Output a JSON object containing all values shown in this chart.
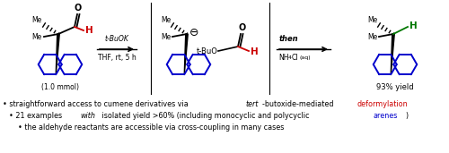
{
  "bg_color": "#ffffff",
  "fig_width": 5.0,
  "fig_height": 1.71,
  "dpi": 100,
  "blue": "#0000cc",
  "red": "#cc0000",
  "black": "#000000",
  "green": "#007700",
  "label1": "(1.0 mmol)",
  "label2": "93% yield",
  "reagent1": "t-BuOK",
  "reagent2": "THF, rt, 5 h"
}
